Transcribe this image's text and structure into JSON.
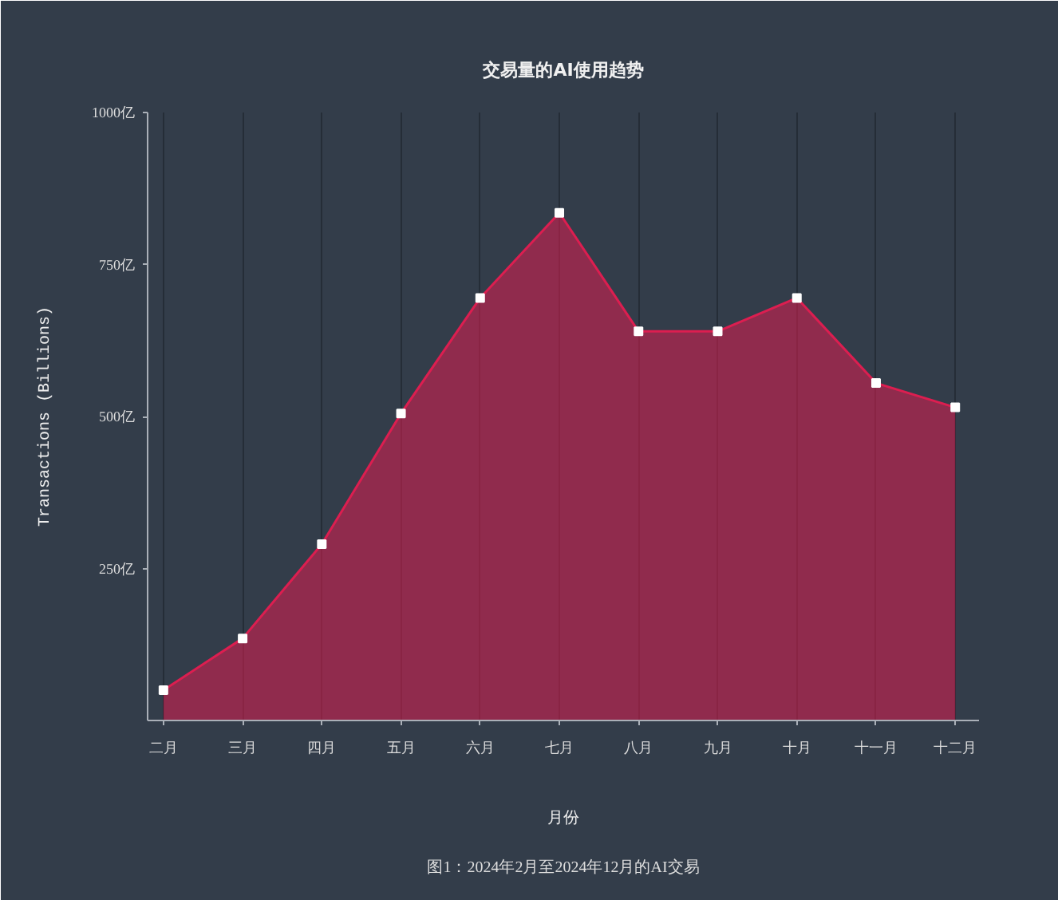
{
  "chart_data": {
    "type": "area",
    "title": "交易量的AI使用趋势",
    "xlabel": "月份",
    "ylabel": "Transactions (Billions)",
    "annotations": [
      "图1：2024年2月至2024年12月的AI交易"
    ],
    "categories": [
      "二月",
      "三月",
      "四月",
      "五月",
      "六月",
      "七月",
      "八月",
      "九月",
      "十月",
      "十一月",
      "十二月"
    ],
    "series": [
      {
        "color": "#dc1e50",
        "values": [
          50,
          135,
          290,
          505,
          695,
          835,
          640,
          640,
          695,
          555,
          515
        ]
      }
    ],
    "ylim": [
      0,
      1000
    ],
    "yticks": [
      {
        "value": 250,
        "label": "250亿"
      },
      {
        "value": 500,
        "label": "500亿"
      },
      {
        "value": 750,
        "label": "750亿"
      },
      {
        "value": 1000,
        "label": "1000亿"
      }
    ],
    "grid": "x",
    "marker": "square"
  }
}
